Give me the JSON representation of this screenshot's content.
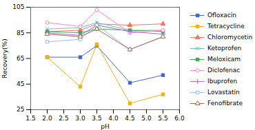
{
  "chart_data": {
    "type": "line",
    "x": [
      2.0,
      3.0,
      3.5,
      4.5,
      5.5
    ],
    "series": [
      {
        "name": "Ofloxacin",
        "values": [
          66,
          66,
          75,
          46,
          52
        ],
        "marker": "square"
      },
      {
        "name": "Tetracycline",
        "values": [
          66,
          43,
          76,
          30,
          37
        ],
        "marker": "square"
      },
      {
        "name": "Chloromycetin",
        "values": [
          86,
          87,
          92,
          91,
          92
        ],
        "marker": "triangle"
      },
      {
        "name": "Ketoprofen",
        "values": [
          88,
          89,
          93,
          87,
          87
        ],
        "marker": "x"
      },
      {
        "name": "Meloxicam",
        "values": [
          86,
          85,
          88,
          87,
          86
        ],
        "marker": "square"
      },
      {
        "name": "Diclofenac",
        "values": [
          93,
          90,
          103,
          85,
          87
        ],
        "marker": "circle-open"
      },
      {
        "name": "Ibuprofen",
        "values": [
          85,
          83,
          91,
          86,
          84
        ],
        "marker": "plus"
      },
      {
        "name": "Lovastatin",
        "values": [
          78,
          80,
          91,
          72,
          82
        ],
        "marker": "square-open"
      },
      {
        "name": "Fenofibrate",
        "values": [
          84,
          82,
          88,
          72,
          82
        ],
        "marker": "triangle-open"
      }
    ],
    "xlabel": "pH",
    "ylabel": "Recovery(%)",
    "xlim": [
      1.5,
      6.0
    ],
    "ylim": [
      25,
      105
    ],
    "xticks": [
      1.5,
      {
        "value": 2.0,
        "label": "2.0"
      },
      2.5,
      {
        "value": 3.0,
        "label": "3.0"
      },
      3.5,
      {
        "value": 4.0,
        "label": "4.0"
      },
      4.5,
      {
        "value": 5.0,
        "label": "5.0"
      },
      5.5,
      {
        "value": 6.0,
        "label": "6.0"
      }
    ],
    "yticks": [
      25,
      45,
      65,
      85,
      105
    ],
    "legend": "right",
    "grid": false
  }
}
